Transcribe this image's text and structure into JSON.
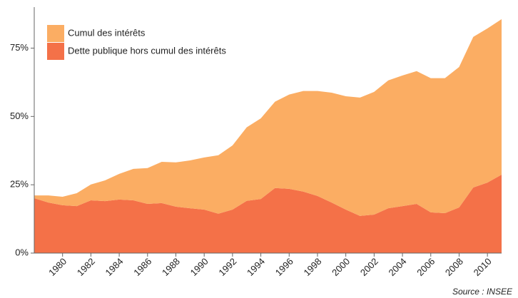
{
  "chart_data": {
    "type": "stacked-area",
    "x": [
      1978,
      1979,
      1980,
      1981,
      1982,
      1983,
      1984,
      1985,
      1986,
      1987,
      1988,
      1989,
      1990,
      1991,
      1992,
      1993,
      1994,
      1995,
      1996,
      1997,
      1998,
      1999,
      2000,
      2001,
      2002,
      2003,
      2004,
      2005,
      2006,
      2007,
      2008,
      2009,
      2010,
      2011
    ],
    "series": [
      {
        "name": "Dette publique hors cumul des intérêts",
        "color": "#f47148",
        "values": [
          20.1,
          18.5,
          17.5,
          17.2,
          19.3,
          19.0,
          19.6,
          19.3,
          18.0,
          18.3,
          17.0,
          16.4,
          15.9,
          14.4,
          15.9,
          19.1,
          19.8,
          23.8,
          23.5,
          22.5,
          20.9,
          18.5,
          15.9,
          13.6,
          14.1,
          16.4,
          17.2,
          18.0,
          14.9,
          14.6,
          16.7,
          24.0,
          25.8,
          28.7
        ]
      },
      {
        "name": "Cumul des intérêts",
        "color": "#fbad63",
        "values": [
          1.0,
          2.6,
          3.1,
          4.7,
          5.8,
          7.6,
          9.4,
          11.5,
          13.1,
          15.1,
          16.2,
          17.5,
          19.1,
          21.4,
          23.5,
          26.9,
          29.5,
          31.6,
          34.5,
          36.8,
          38.4,
          40.2,
          41.5,
          43.3,
          44.9,
          46.8,
          47.8,
          48.6,
          49.1,
          49.4,
          51.4,
          55.1,
          56.4,
          56.9
        ]
      }
    ],
    "xlim": [
      1978,
      2011
    ],
    "xticks": [
      1980,
      1982,
      1984,
      1986,
      1988,
      1990,
      1992,
      1994,
      1996,
      1998,
      2000,
      2002,
      2004,
      2006,
      2008,
      2010
    ],
    "ylim": [
      0,
      90
    ],
    "yticks": [
      {
        "value": 0,
        "label": "0%"
      },
      {
        "value": 25,
        "label": "25%"
      },
      {
        "value": 50,
        "label": "50%"
      },
      {
        "value": 75,
        "label": "75%"
      }
    ],
    "legend": "top-left",
    "source": "Source : INSEE"
  }
}
